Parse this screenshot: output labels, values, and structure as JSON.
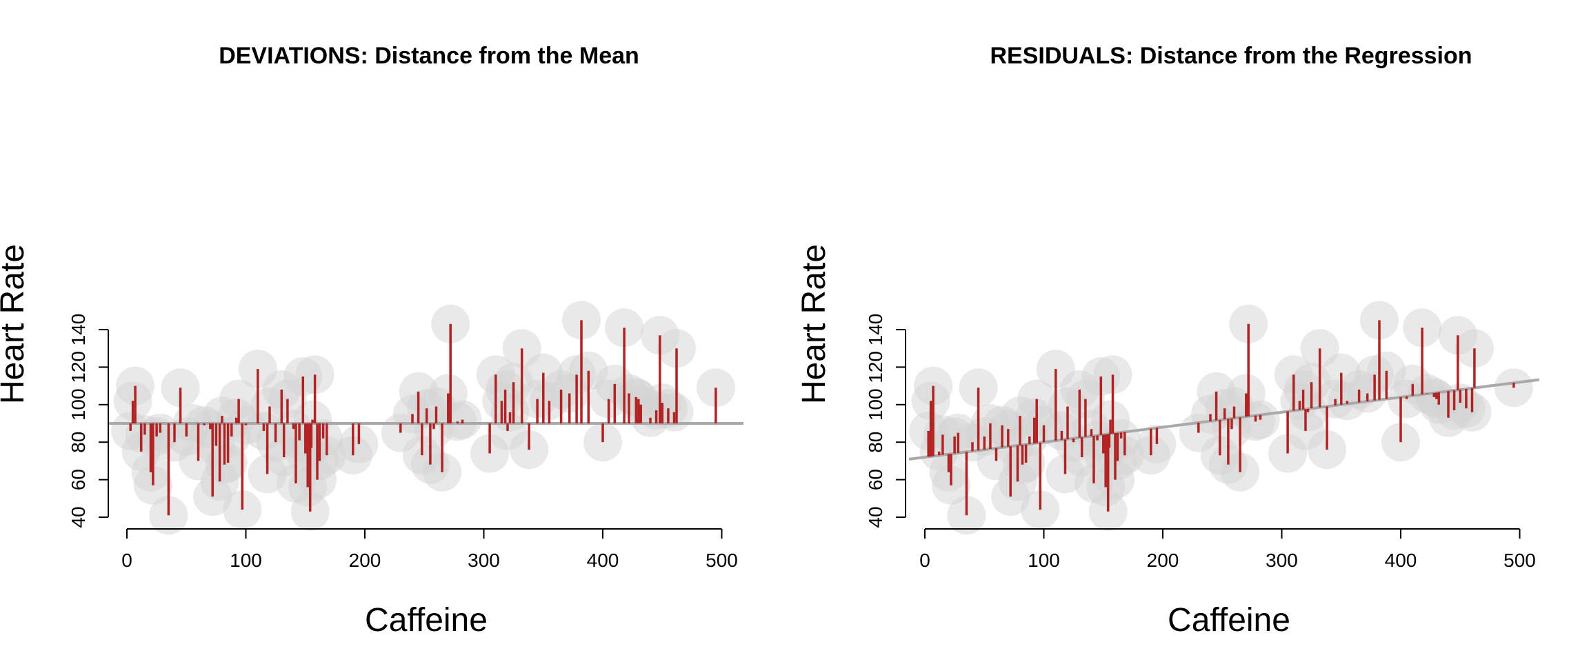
{
  "colors": {
    "point_fill": "#d3d3d3",
    "point_opacity": 0.5,
    "segment": "#b22222",
    "reference_line": "#a9a9a9",
    "axis": "#000000",
    "background": "#ffffff"
  },
  "chart_data": [
    {
      "type": "scatter",
      "title": "DEVIATIONS: Distance from the Mean",
      "xlabel": "Caffeine",
      "ylabel": "Heart Rate",
      "xlim": [
        0,
        500
      ],
      "ylim": [
        40,
        145
      ],
      "xticks": [
        0,
        100,
        200,
        300,
        400,
        500
      ],
      "yticks": [
        40,
        60,
        80,
        100,
        120,
        140
      ],
      "reference": {
        "kind": "mean",
        "y": 90
      },
      "points": [
        [
          3,
          86
        ],
        [
          5,
          102
        ],
        [
          7,
          110
        ],
        [
          12,
          75
        ],
        [
          15,
          84
        ],
        [
          20,
          64
        ],
        [
          22,
          57
        ],
        [
          25,
          83
        ],
        [
          28,
          85
        ],
        [
          35,
          41
        ],
        [
          40,
          80
        ],
        [
          45,
          109
        ],
        [
          50,
          83
        ],
        [
          55,
          90
        ],
        [
          60,
          70
        ],
        [
          65,
          89
        ],
        [
          70,
          87
        ],
        [
          72,
          51
        ],
        [
          75,
          78
        ],
        [
          78,
          59
        ],
        [
          80,
          94
        ],
        [
          82,
          68
        ],
        [
          85,
          69
        ],
        [
          88,
          83
        ],
        [
          92,
          93
        ],
        [
          94,
          103
        ],
        [
          97,
          44
        ],
        [
          100,
          89
        ],
        [
          110,
          119
        ],
        [
          115,
          86
        ],
        [
          118,
          63
        ],
        [
          120,
          99
        ],
        [
          125,
          80
        ],
        [
          130,
          108
        ],
        [
          132,
          72
        ],
        [
          135,
          103
        ],
        [
          140,
          87
        ],
        [
          142,
          58
        ],
        [
          145,
          81
        ],
        [
          148,
          115
        ],
        [
          150,
          74
        ],
        [
          152,
          56
        ],
        [
          154,
          43
        ],
        [
          155,
          77
        ],
        [
          156,
          92
        ],
        [
          158,
          116
        ],
        [
          160,
          60
        ],
        [
          162,
          70
        ],
        [
          165,
          82
        ],
        [
          168,
          73
        ],
        [
          190,
          73
        ],
        [
          195,
          79
        ],
        [
          230,
          85
        ],
        [
          240,
          95
        ],
        [
          245,
          107
        ],
        [
          248,
          73
        ],
        [
          252,
          98
        ],
        [
          255,
          68
        ],
        [
          258,
          87
        ],
        [
          260,
          99
        ],
        [
          265,
          64
        ],
        [
          270,
          106
        ],
        [
          272,
          143
        ],
        [
          278,
          91
        ],
        [
          282,
          92
        ],
        [
          305,
          74
        ],
        [
          310,
          116
        ],
        [
          315,
          102
        ],
        [
          318,
          108
        ],
        [
          320,
          86
        ],
        [
          322,
          96
        ],
        [
          325,
          112
        ],
        [
          332,
          130
        ],
        [
          338,
          76
        ],
        [
          345,
          103
        ],
        [
          350,
          117
        ],
        [
          355,
          102
        ],
        [
          365,
          108
        ],
        [
          372,
          106
        ],
        [
          378,
          116
        ],
        [
          382,
          145
        ],
        [
          388,
          118
        ],
        [
          400,
          80
        ],
        [
          405,
          103
        ],
        [
          410,
          111
        ],
        [
          418,
          141
        ],
        [
          422,
          106
        ],
        [
          428,
          104
        ],
        [
          430,
          103
        ],
        [
          432,
          100
        ],
        [
          440,
          93
        ],
        [
          445,
          97
        ],
        [
          448,
          137
        ],
        [
          450,
          101
        ],
        [
          455,
          98
        ],
        [
          460,
          96
        ],
        [
          462,
          130
        ],
        [
          495,
          109
        ]
      ]
    },
    {
      "type": "scatter",
      "title": "RESIDUALS: Distance from the Regression",
      "xlabel": "Caffeine",
      "ylabel": "Heart Rate",
      "xlim": [
        0,
        500
      ],
      "ylim": [
        40,
        145
      ],
      "xticks": [
        0,
        100,
        200,
        300,
        400,
        500
      ],
      "yticks": [
        40,
        60,
        80,
        100,
        120,
        140
      ],
      "reference": {
        "kind": "regression",
        "intercept": 72,
        "slope": 0.08
      },
      "points_from": 0
    }
  ]
}
